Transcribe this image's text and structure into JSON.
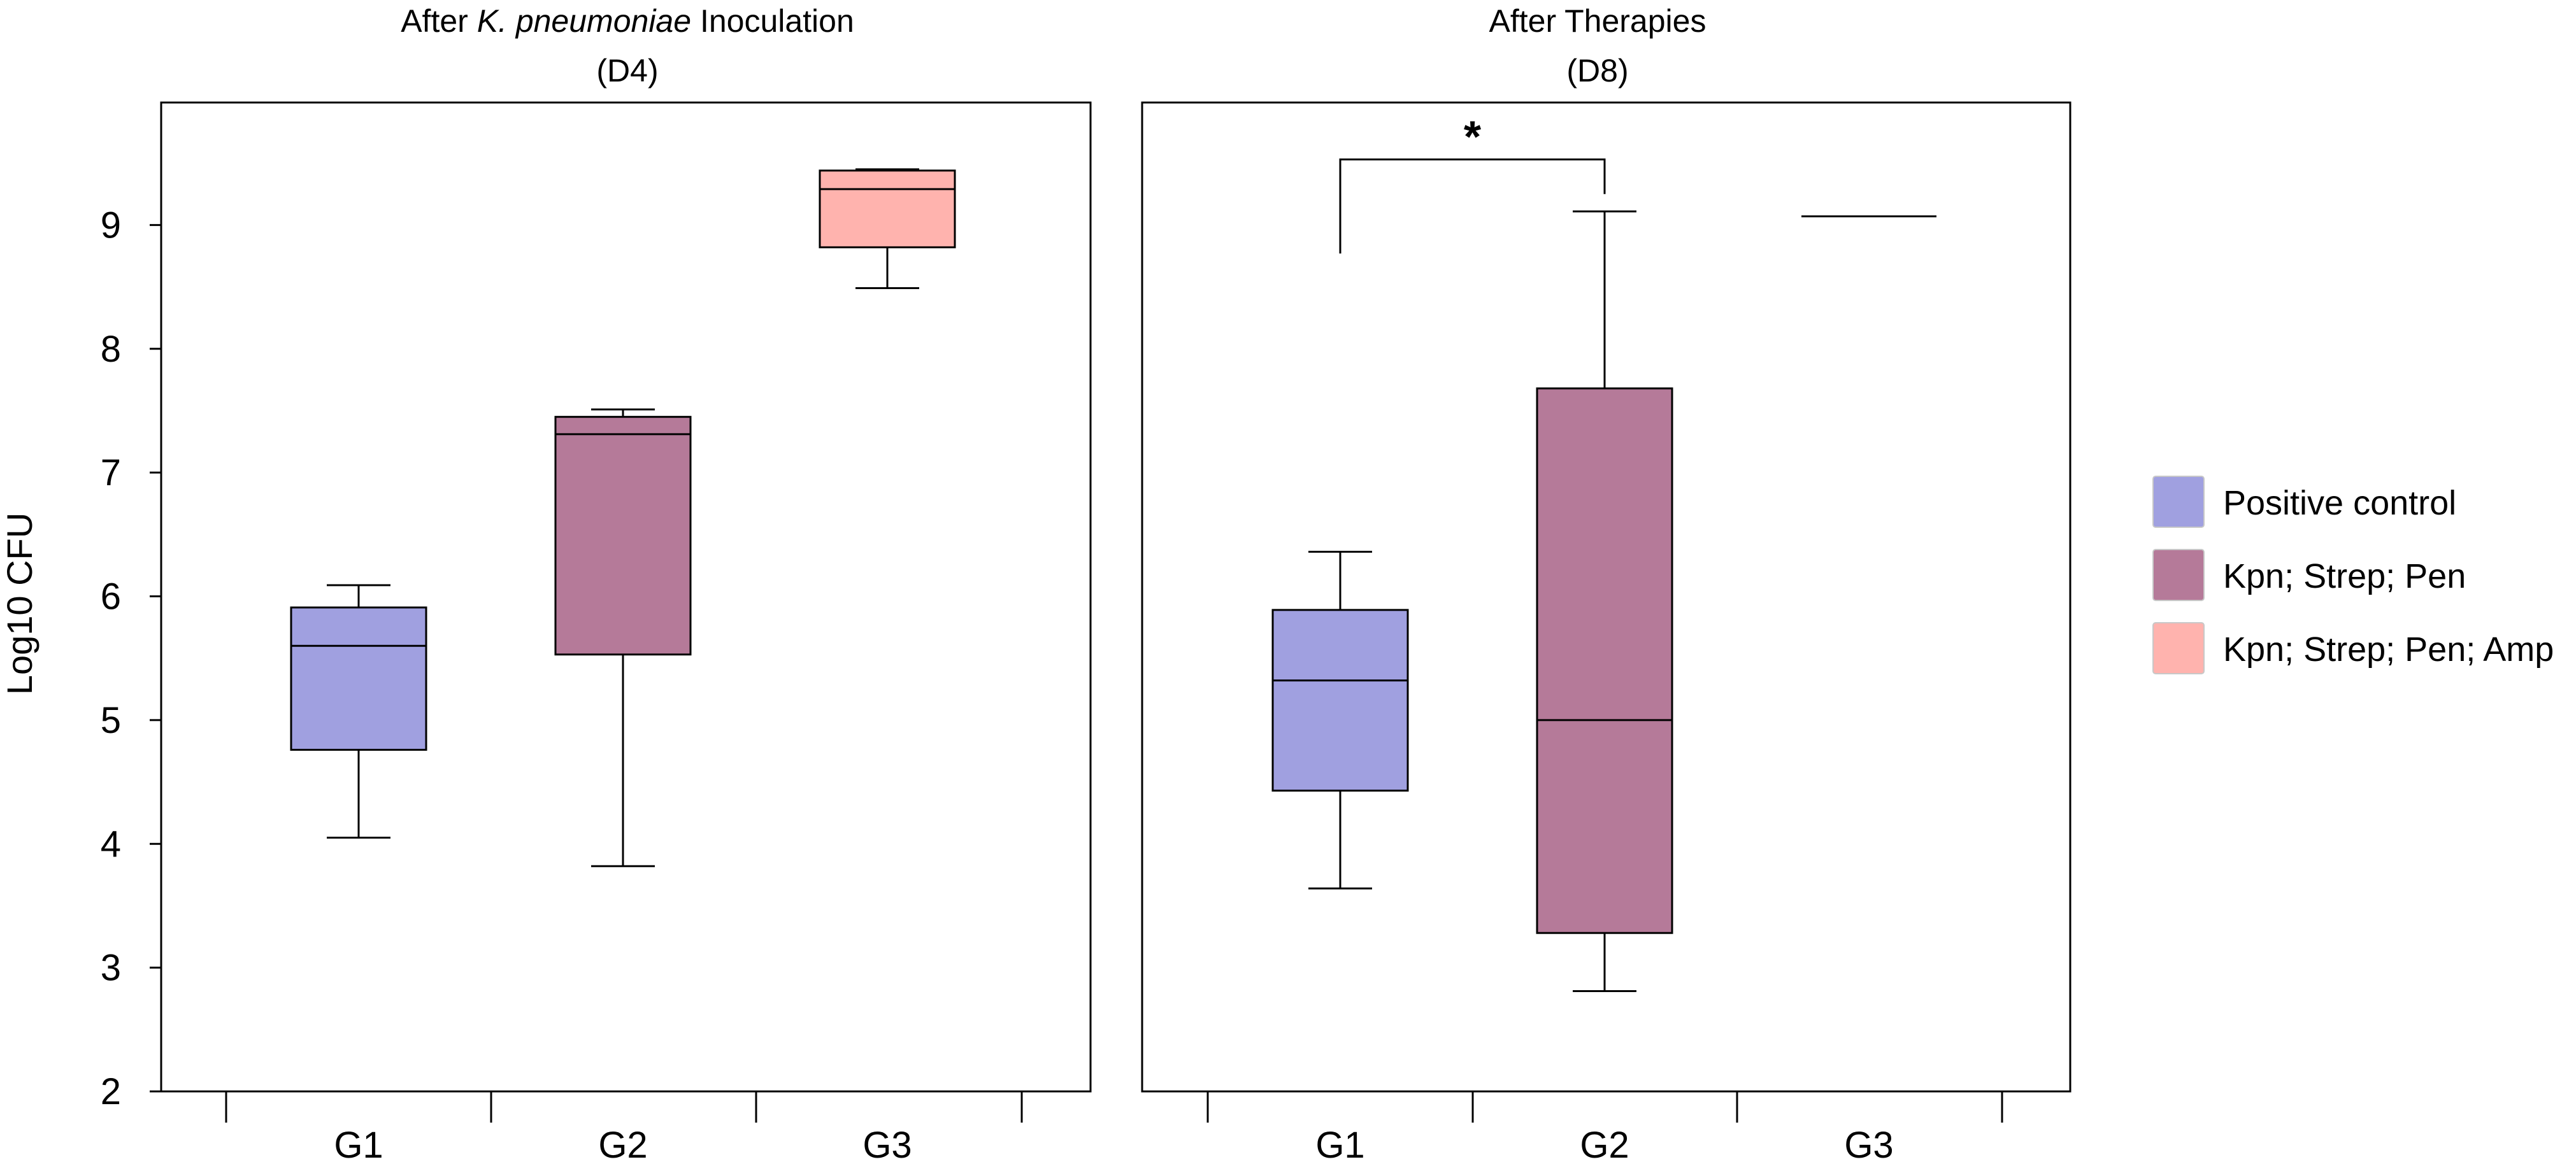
{
  "chart_data": [
    {
      "type": "box",
      "title": {
        "line1_prefix": "After ",
        "line1_italic": "K. pneumoniae",
        "line1_suffix": " Inoculation",
        "line2": "(D4)"
      },
      "ylabel": "Log10 CFU",
      "ylim": [
        2,
        10
      ],
      "yticks": [
        "2",
        "3",
        "4",
        "5",
        "6",
        "7",
        "8",
        "9"
      ],
      "categories": [
        "G1",
        "G2",
        "G3"
      ],
      "boxes": [
        {
          "group": "G1",
          "series": "Positive control",
          "min": 4.05,
          "q1": 4.76,
          "median": 5.6,
          "q3": 5.91,
          "max": 6.09
        },
        {
          "group": "G2",
          "series": "Kpn; Strep; Pen",
          "min": 3.82,
          "q1": 5.53,
          "median": 7.31,
          "q3": 7.45,
          "max": 7.51
        },
        {
          "group": "G3",
          "series": "Kpn; Strep; Pen; Amp",
          "min": 8.49,
          "q1": 8.82,
          "median": 9.29,
          "q3": 9.44,
          "max": 9.45
        }
      ],
      "annotations": []
    },
    {
      "type": "box",
      "title": {
        "line1_prefix": "After Therapies",
        "line1_italic": "",
        "line1_suffix": "",
        "line2": "(D8)"
      },
      "ylim": [
        2,
        10
      ],
      "categories": [
        "G1",
        "G2",
        "G3"
      ],
      "boxes": [
        {
          "group": "G1",
          "series": "Positive control",
          "min": 3.64,
          "q1": 4.43,
          "median": 5.32,
          "q3": 5.89,
          "max": 6.36
        },
        {
          "group": "G2",
          "series": "Kpn; Strep; Pen",
          "min": 2.81,
          "q1": 3.28,
          "median": 5.0,
          "q3": 7.68,
          "max": 9.11
        },
        {
          "group": "G3",
          "series": "Kpn; Strep; Pen; Amp",
          "min": 9.07,
          "q1": 9.07,
          "median": 9.07,
          "q3": 9.07,
          "max": 9.07
        }
      ],
      "annotations": [
        {
          "type": "significance",
          "from": "G1",
          "to": "G2",
          "label": "*",
          "y": 9.53,
          "left_drop_to": 8.77,
          "right_drop_to": 9.25
        }
      ]
    }
  ],
  "legend": {
    "position": "right",
    "items": [
      {
        "label": "Positive control",
        "color": "#a0a0e0"
      },
      {
        "label": "Kpn; Strep; Pen",
        "color": "#b57a99"
      },
      {
        "label": "Kpn; Strep; Pen; Amp",
        "color": "#ffb3ae"
      }
    ]
  },
  "colors": {
    "Positive control": "#a0a0e0",
    "Kpn; Strep; Pen": "#b57a99",
    "Kpn; Strep; Pen; Amp": "#ffb3ae",
    "axis": "#000000"
  }
}
